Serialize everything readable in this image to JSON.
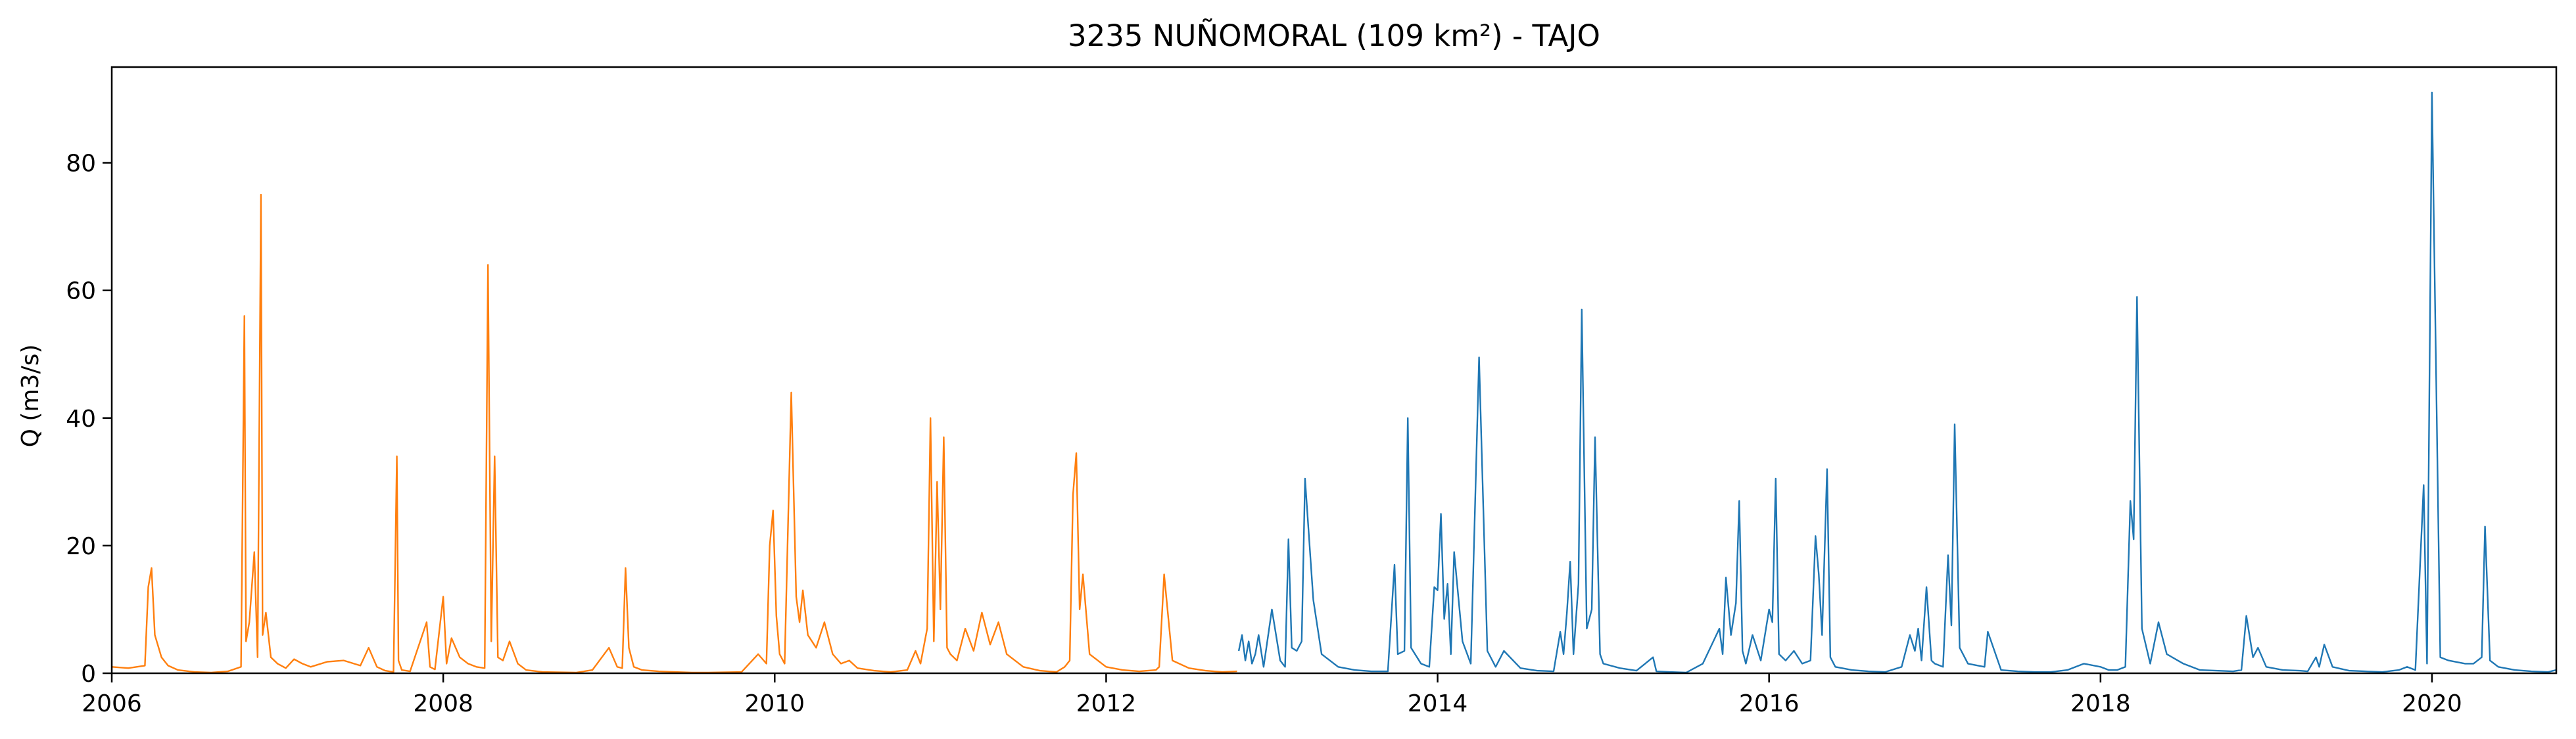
{
  "chart_data": {
    "type": "line",
    "title": "3235 NUÑOMORAL (109 km²) - TAJO",
    "xlabel": "",
    "ylabel": "Q (m3/s)",
    "xlim": [
      2006.0,
      2020.75
    ],
    "ylim": [
      0,
      95
    ],
    "xticks": [
      2006,
      2008,
      2010,
      2012,
      2014,
      2016,
      2018,
      2020
    ],
    "yticks": [
      0,
      20,
      40,
      60,
      80
    ],
    "grid": false,
    "legend": "none",
    "series": [
      {
        "color": "#ff7f0e",
        "x": [
          2006.0,
          2006.1,
          2006.2,
          2006.22,
          2006.24,
          2006.26,
          2006.3,
          2006.34,
          2006.4,
          2006.5,
          2006.6,
          2006.7,
          2006.78,
          2006.8,
          2006.81,
          2006.83,
          2006.86,
          2006.88,
          2006.9,
          2006.91,
          2006.93,
          2006.96,
          2007.0,
          2007.05,
          2007.1,
          2007.15,
          2007.2,
          2007.3,
          2007.4,
          2007.5,
          2007.55,
          2007.6,
          2007.65,
          2007.7,
          2007.72,
          2007.73,
          2007.75,
          2007.8,
          2007.9,
          2007.92,
          2007.95,
          2008.0,
          2008.02,
          2008.05,
          2008.1,
          2008.15,
          2008.2,
          2008.25,
          2008.27,
          2008.29,
          2008.31,
          2008.33,
          2008.36,
          2008.4,
          2008.45,
          2008.5,
          2008.6,
          2008.8,
          2008.9,
          2009.0,
          2009.05,
          2009.08,
          2009.1,
          2009.12,
          2009.15,
          2009.2,
          2009.3,
          2009.4,
          2009.5,
          2009.6,
          2009.8,
          2009.9,
          2009.95,
          2009.97,
          2009.99,
          2010.01,
          2010.03,
          2010.06,
          2010.1,
          2010.13,
          2010.15,
          2010.17,
          2010.2,
          2010.25,
          2010.3,
          2010.35,
          2010.4,
          2010.45,
          2010.5,
          2010.6,
          2010.7,
          2010.8,
          2010.85,
          2010.88,
          2010.92,
          2010.94,
          2010.96,
          2010.98,
          2011.0,
          2011.02,
          2011.04,
          2011.06,
          2011.1,
          2011.15,
          2011.2,
          2011.25,
          2011.3,
          2011.35,
          2011.4,
          2011.5,
          2011.6,
          2011.7,
          2011.75,
          2011.78,
          2011.8,
          2011.82,
          2011.84,
          2011.86,
          2011.9,
          2012.0,
          2012.1,
          2012.2,
          2012.3,
          2012.32,
          2012.35,
          2012.4,
          2012.5,
          2012.6,
          2012.7,
          2012.79
        ],
        "values": [
          1.0,
          0.8,
          1.2,
          13.5,
          16.5,
          6.0,
          2.5,
          1.2,
          0.5,
          0.2,
          0.1,
          0.3,
          1.0,
          56.0,
          5.0,
          8.0,
          19.0,
          2.5,
          75.0,
          6.0,
          9.5,
          2.5,
          1.5,
          0.8,
          2.2,
          1.5,
          1.0,
          1.8,
          2.0,
          1.2,
          4.0,
          1.0,
          0.4,
          0.2,
          34.0,
          2.0,
          0.5,
          0.3,
          8.0,
          1.0,
          0.6,
          12.0,
          1.5,
          5.5,
          2.5,
          1.5,
          1.0,
          0.8,
          64.0,
          5.0,
          34.0,
          2.5,
          2.0,
          5.0,
          1.5,
          0.5,
          0.2,
          0.1,
          0.5,
          4.0,
          1.0,
          0.8,
          16.5,
          4.0,
          1.0,
          0.5,
          0.3,
          0.2,
          0.1,
          0.1,
          0.2,
          3.0,
          1.5,
          20.0,
          25.5,
          9.0,
          3.0,
          1.5,
          44.0,
          12.0,
          8.0,
          13.0,
          6.0,
          4.0,
          8.0,
          3.0,
          1.5,
          2.0,
          0.8,
          0.4,
          0.2,
          0.5,
          3.5,
          1.5,
          7.0,
          40.0,
          5.0,
          30.0,
          10.0,
          37.0,
          4.0,
          3.0,
          2.0,
          7.0,
          3.5,
          9.5,
          4.5,
          8.0,
          3.0,
          1.0,
          0.4,
          0.2,
          1.0,
          2.0,
          28.0,
          34.5,
          10.0,
          15.5,
          3.0,
          1.0,
          0.5,
          0.3,
          0.5,
          1.0,
          15.5,
          2.0,
          0.8,
          0.4,
          0.2,
          0.3
        ]
      },
      {
        "color": "#1f77b4",
        "x": [
          2012.8,
          2012.82,
          2012.84,
          2012.86,
          2012.88,
          2012.9,
          2012.92,
          2012.95,
          2013.0,
          2013.05,
          2013.08,
          2013.1,
          2013.12,
          2013.15,
          2013.18,
          2013.2,
          2013.25,
          2013.3,
          2013.4,
          2013.5,
          2013.6,
          2013.7,
          2013.74,
          2013.76,
          2013.8,
          2013.82,
          2013.84,
          2013.9,
          2013.95,
          2013.98,
          2014.0,
          2014.02,
          2014.04,
          2014.06,
          2014.08,
          2014.1,
          2014.15,
          2014.2,
          2014.25,
          2014.3,
          2014.35,
          2014.4,
          2014.5,
          2014.6,
          2014.7,
          2014.74,
          2014.76,
          2014.78,
          2014.8,
          2014.82,
          2014.85,
          2014.87,
          2014.9,
          2014.93,
          2014.95,
          2014.98,
          2015.0,
          2015.1,
          2015.2,
          2015.3,
          2015.32,
          2015.4,
          2015.5,
          2015.6,
          2015.7,
          2015.72,
          2015.74,
          2015.77,
          2015.8,
          2015.82,
          2015.84,
          2015.86,
          2015.9,
          2015.95,
          2016.0,
          2016.02,
          2016.04,
          2016.06,
          2016.1,
          2016.15,
          2016.2,
          2016.25,
          2016.28,
          2016.3,
          2016.32,
          2016.35,
          2016.37,
          2016.4,
          2016.5,
          2016.6,
          2016.7,
          2016.8,
          2016.85,
          2016.88,
          2016.9,
          2016.92,
          2016.95,
          2016.98,
          2017.0,
          2017.05,
          2017.08,
          2017.1,
          2017.12,
          2017.15,
          2017.2,
          2017.3,
          2017.32,
          2017.4,
          2017.5,
          2017.6,
          2017.7,
          2017.8,
          2017.9,
          2018.0,
          2018.05,
          2018.1,
          2018.15,
          2018.18,
          2018.2,
          2018.22,
          2018.25,
          2018.3,
          2018.35,
          2018.4,
          2018.5,
          2018.6,
          2018.7,
          2018.8,
          2018.85,
          2018.88,
          2018.92,
          2018.95,
          2019.0,
          2019.1,
          2019.2,
          2019.25,
          2019.3,
          2019.32,
          2019.35,
          2019.4,
          2019.5,
          2019.6,
          2019.7,
          2019.8,
          2019.85,
          2019.9,
          2019.95,
          2019.97,
          2020.0,
          2020.05,
          2020.1,
          2020.2,
          2020.25,
          2020.3,
          2020.32,
          2020.35,
          2020.4,
          2020.5,
          2020.6,
          2020.7,
          2020.75
        ],
        "values": [
          3.5,
          6.0,
          2.0,
          5.0,
          1.5,
          3.0,
          6.0,
          1.0,
          10.0,
          2.0,
          1.0,
          21.0,
          4.0,
          3.5,
          5.0,
          30.5,
          11.5,
          3.0,
          1.0,
          0.5,
          0.3,
          0.3,
          17.0,
          3.0,
          3.5,
          40.0,
          4.0,
          1.5,
          1.0,
          13.5,
          13.0,
          25.0,
          8.5,
          14.0,
          3.0,
          19.0,
          5.0,
          1.5,
          49.5,
          3.5,
          1.0,
          3.5,
          0.8,
          0.4,
          0.3,
          6.5,
          3.0,
          9.5,
          17.5,
          3.0,
          14.0,
          57.0,
          7.0,
          10.0,
          37.0,
          3.0,
          1.5,
          0.8,
          0.4,
          2.5,
          0.3,
          0.2,
          0.1,
          1.5,
          7.0,
          3.0,
          15.0,
          6.0,
          11.0,
          27.0,
          3.5,
          1.5,
          6.0,
          2.0,
          10.0,
          8.0,
          30.5,
          3.0,
          2.0,
          3.5,
          1.5,
          2.0,
          21.5,
          15.5,
          6.0,
          32.0,
          2.5,
          1.0,
          0.5,
          0.3,
          0.2,
          1.0,
          6.0,
          3.5,
          7.0,
          2.0,
          13.5,
          2.0,
          1.5,
          1.0,
          18.5,
          7.5,
          39.0,
          4.0,
          1.5,
          1.0,
          6.5,
          0.5,
          0.3,
          0.2,
          0.2,
          0.5,
          1.5,
          1.0,
          0.5,
          0.5,
          1.0,
          27.0,
          21.0,
          59.0,
          7.0,
          1.5,
          8.0,
          3.0,
          1.5,
          0.5,
          0.4,
          0.3,
          0.5,
          9.0,
          2.5,
          4.0,
          1.0,
          0.5,
          0.4,
          0.3,
          2.5,
          1.0,
          4.5,
          1.0,
          0.4,
          0.3,
          0.2,
          0.5,
          1.0,
          0.5,
          29.5,
          1.5,
          91.0,
          2.5,
          2.0,
          1.5,
          1.5,
          2.5,
          23.0,
          2.0,
          1.0,
          0.5,
          0.3,
          0.2,
          0.5
        ]
      }
    ]
  }
}
